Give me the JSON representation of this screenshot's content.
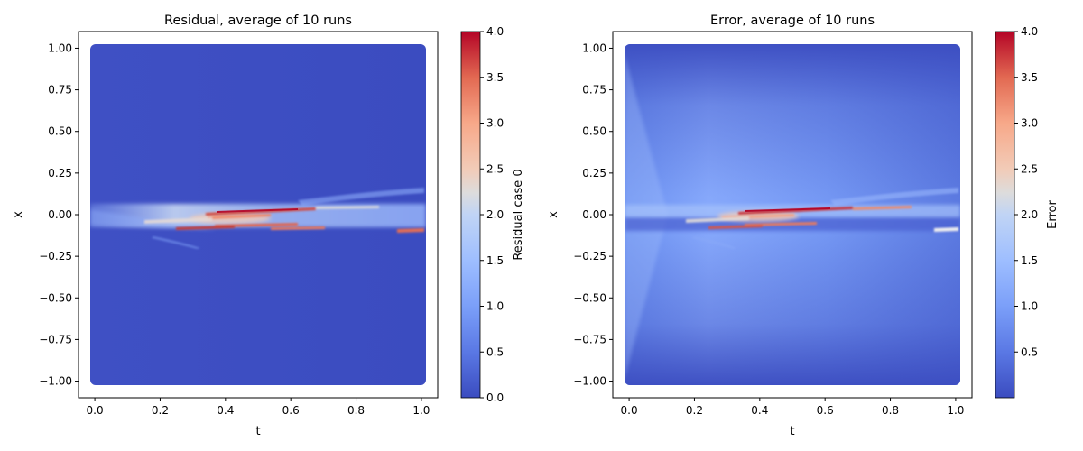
{
  "chart_data": [
    {
      "type": "heatmap",
      "title": "Residual, average of 10 runs",
      "xlabel": "t",
      "ylabel": "x",
      "xlim": [
        -0.05,
        1.05
      ],
      "ylim": [
        -1.1,
        1.1
      ],
      "x_ticks": [
        "0.0",
        "0.2",
        "0.4",
        "0.6",
        "0.8",
        "1.0"
      ],
      "y_ticks": [
        "1.00",
        "0.75",
        "0.50",
        "0.25",
        "0.00",
        "−0.25",
        "−0.50",
        "−0.75",
        "−1.00"
      ],
      "colorbar": {
        "label": "Residual case 0",
        "range": [
          0.0,
          4.0
        ],
        "ticks": [
          "0.0",
          "0.5",
          "1.0",
          "1.5",
          "2.0",
          "2.5",
          "3.0",
          "3.5",
          "4.0"
        ]
      },
      "colormap": "coolwarm",
      "background_value": 0.0,
      "features": [
        {
          "t_range": [
            0.0,
            1.0
          ],
          "x_center": -0.02,
          "x_halfwidth": 0.08,
          "level": 1.2,
          "note_hidden": false
        },
        {
          "t_range": [
            0.32,
            0.72
          ],
          "x_center": 0.01,
          "x_halfwidth": 0.03,
          "level": 4.0
        },
        {
          "t_range": [
            0.28,
            0.55
          ],
          "x_center": -0.06,
          "x_halfwidth": 0.02,
          "level": 3.2
        },
        {
          "t_range": [
            0.9,
            1.0
          ],
          "x_center": -0.08,
          "x_halfwidth": 0.02,
          "level": 3.0
        }
      ]
    },
    {
      "type": "heatmap",
      "title": "Error, average of 10 runs",
      "xlabel": "t",
      "ylabel": "x",
      "xlim": [
        -0.05,
        1.05
      ],
      "ylim": [
        -1.1,
        1.1
      ],
      "x_ticks": [
        "0.0",
        "0.2",
        "0.4",
        "0.6",
        "0.8",
        "1.0"
      ],
      "y_ticks": [
        "1.00",
        "0.75",
        "0.50",
        "0.25",
        "0.00",
        "−0.25",
        "−0.50",
        "−0.75",
        "−1.00"
      ],
      "colorbar": {
        "label": "Error",
        "range": [
          0.0,
          4.0
        ],
        "ticks": [
          "0.5",
          "1.0",
          "1.5",
          "2.0",
          "2.5",
          "3.0",
          "3.5",
          "4.0"
        ]
      },
      "colormap": "coolwarm",
      "background_value": 0.9,
      "features": [
        {
          "t_range": [
            0.0,
            1.0
          ],
          "x_center": -0.02,
          "x_halfwidth": 0.08,
          "level": 1.3
        },
        {
          "t_range": [
            0.32,
            0.72
          ],
          "x_center": 0.01,
          "x_halfwidth": 0.03,
          "level": 4.0
        },
        {
          "t_range": [
            0.3,
            0.55
          ],
          "x_center": -0.06,
          "x_halfwidth": 0.02,
          "level": 3.0
        },
        {
          "t_range": [
            0.9,
            1.0
          ],
          "x_center": -0.08,
          "x_halfwidth": 0.02,
          "level": 2.8
        }
      ]
    }
  ],
  "colors": {
    "cmap_low": "#3b4cc0",
    "cmap_mid": "#dddddd",
    "cmap_high": "#b40426",
    "axis": "#000000"
  }
}
